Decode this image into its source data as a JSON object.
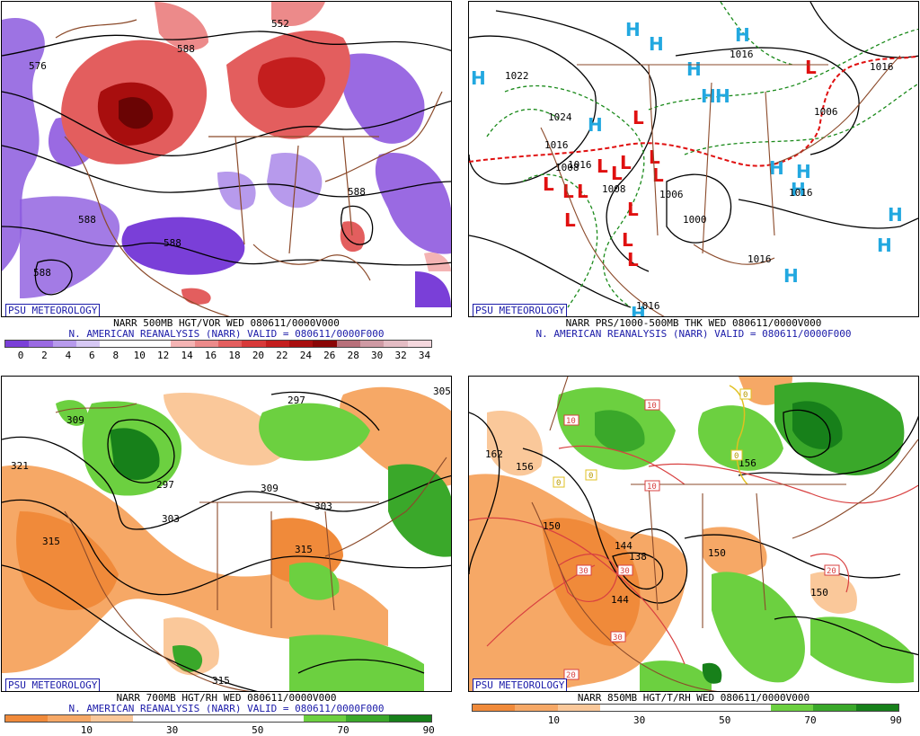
{
  "panels": [
    {
      "badge": "PSU METEOROLOGY",
      "caption_line1": "NARR 500MB HGT/VOR WED 080611/0000V000",
      "caption_line2": "N. AMERICAN REANALYSIS (NARR) VALID = 080611/0000F000",
      "colorbar": {
        "ticks": [
          "0",
          "2",
          "4",
          "6",
          "8",
          "10",
          "12",
          "14",
          "16",
          "18",
          "20",
          "22",
          "24",
          "26",
          "28",
          "30",
          "32",
          "34"
        ],
        "colors": [
          "#7a3fd8",
          "#9a6ae2",
          "#b79aec",
          "#d6c8f4",
          "#ffffff",
          "#ffffff",
          "#ffffff",
          "#f4b4b4",
          "#ec8a8a",
          "#e35e5e",
          "#d83a3a",
          "#c41e1e",
          "#a80e0e",
          "#8a0606",
          "#b8707a",
          "#cf9aa4",
          "#e4bcc4",
          "#f5d8de"
        ]
      },
      "contour_labels": [
        "552",
        "576",
        "588",
        "588",
        "588",
        "588",
        "588"
      ]
    },
    {
      "badge": "PSU METEOROLOGY",
      "caption_line1": "NARR PRS/1000-500MB THK WED 080611/0000V000",
      "caption_line2": "N. AMERICAN REANALYSIS (NARR) VALID = 080611/0000F000",
      "contour_labels": [
        "1016",
        "1022",
        "1024",
        "1016",
        "1016",
        "1006",
        "1008",
        "1008",
        "1000",
        "1016",
        "1016",
        "1016",
        "1006",
        "1016"
      ],
      "high_symbol": "H",
      "low_symbol": "L",
      "colors": {
        "high": "#22a8e0",
        "low": "#e01010",
        "thickness": "#1a8a1a",
        "freezing": "#e01010"
      }
    },
    {
      "badge": "PSU METEOROLOGY",
      "caption_line1": "NARR 700MB HGT/RH WED 080611/0000V000",
      "caption_line2": "N. AMERICAN REANALYSIS (NARR) VALID = 080611/0000F000",
      "colorbar": {
        "ticks": [
          "10",
          "30",
          "50",
          "70",
          "90"
        ],
        "colors": [
          "#f08a3a",
          "#f6a866",
          "#fac89a",
          "#ffffff",
          "#ffffff",
          "#ffffff",
          "#ffffff",
          "#6cd040",
          "#3aa82a",
          "#17801a"
        ]
      },
      "contour_labels": [
        "297",
        "309",
        "321",
        "315",
        "297",
        "303",
        "309",
        "303",
        "315",
        "315",
        "305"
      ]
    },
    {
      "badge": "PSU METEOROLOGY",
      "caption_line1": "NARR 850MB HGT/T/RH WED 080611/0000V000",
      "caption_line2": "",
      "colorbar": {
        "ticks": [
          "10",
          "30",
          "50",
          "70",
          "90"
        ],
        "colors": [
          "#f08a3a",
          "#f6a866",
          "#fac89a",
          "#ffffff",
          "#ffffff",
          "#ffffff",
          "#ffffff",
          "#6cd040",
          "#3aa82a",
          "#17801a"
        ]
      },
      "contour_labels": [
        "162",
        "156",
        "150",
        "150",
        "144",
        "150",
        "156",
        "144",
        "138"
      ],
      "temp_labels": [
        "10",
        "10",
        "0",
        "0",
        "0",
        "0",
        "10",
        "30",
        "30",
        "30",
        "20",
        "20"
      ]
    }
  ]
}
